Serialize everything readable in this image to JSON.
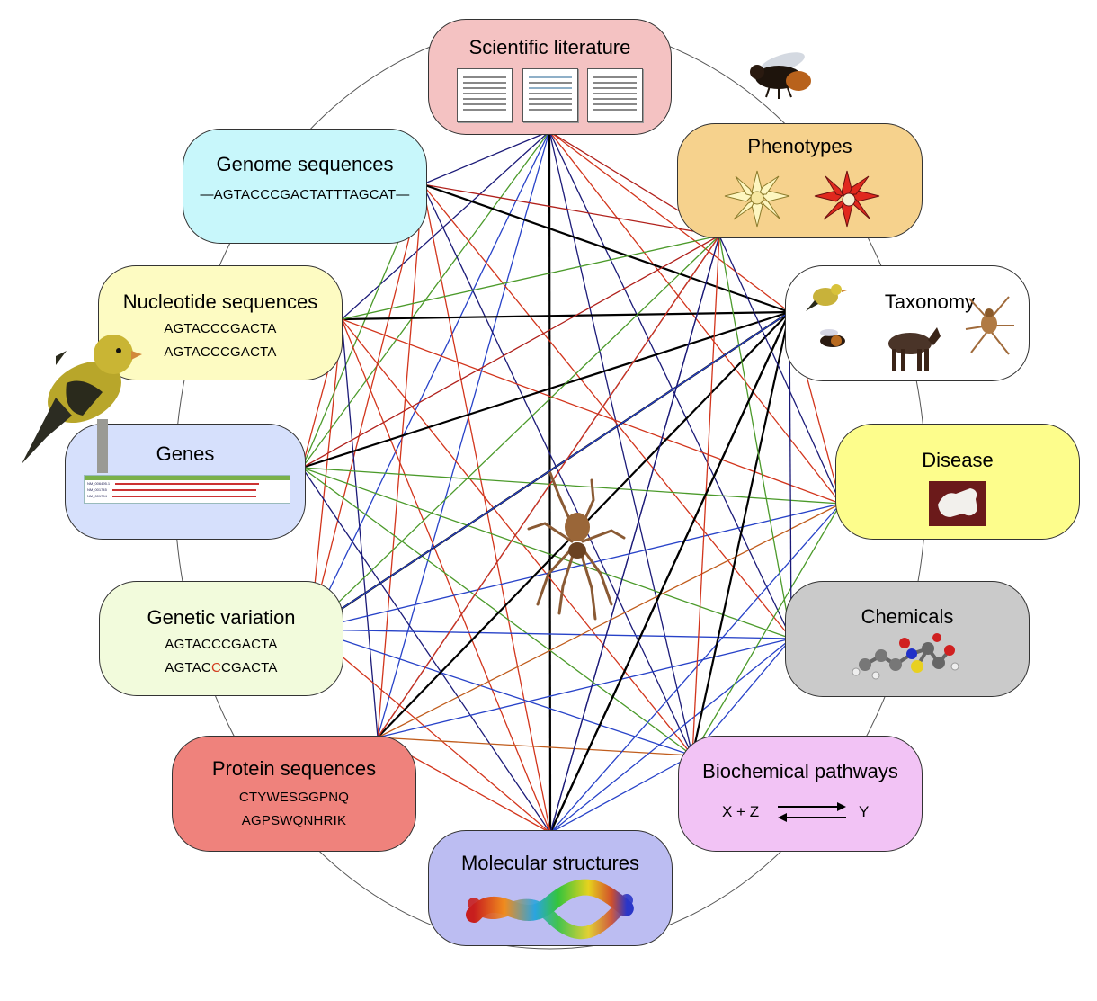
{
  "nodes": {
    "literature": {
      "title": "Scientific literature"
    },
    "genome": {
      "title": "Genome sequences",
      "seq": "—AGTACCCGACTATTTAGCAT—"
    },
    "nucleotide": {
      "title": "Nucleotide sequences",
      "seq1": "AGTACCCGACTA",
      "seq2": "AGTACCCGACTA"
    },
    "genes": {
      "title": "Genes",
      "track_labels": [
        "NM_006495.1",
        "NM_001745",
        "NM_001794"
      ]
    },
    "variation": {
      "title": "Genetic variation",
      "seq1": "AGTACCCGACTA",
      "seq2_pre": "AGTAC",
      "seq2_mut": "C",
      "seq2_post": "CGACTA"
    },
    "protein": {
      "title": "Protein sequences",
      "seq1": "CTYWESGGPNQ",
      "seq2": "AGPSWQNHRIK"
    },
    "structures": {
      "title": "Molecular structures"
    },
    "pathways": {
      "title": "Biochemical pathways",
      "left": "X + Z",
      "right": "Y"
    },
    "chemicals": {
      "title": "Chemicals"
    },
    "disease": {
      "title": "Disease"
    },
    "taxonomy": {
      "title": "Taxonomy"
    },
    "phenotypes": {
      "title": "Phenotypes"
    }
  },
  "colors": {
    "literature": "#f4c2c2",
    "genome": "#c8f7fb",
    "nucleotide": "#fdfbc2",
    "genes": "#d6e0fc",
    "variation": "#f2fbdc",
    "protein": "#ef827c",
    "structures": "#bcbdf2",
    "pathways": "#f2c3f5",
    "chemicals": "#cacaca",
    "disease": "#fdfd8c",
    "taxonomy": "#ffffff",
    "phenotypes": "#f6d28d",
    "link_navy": "#1b1a78",
    "link_blue": "#2742c8",
    "link_red": "#d2351c",
    "link_darkred": "#b0201b",
    "link_green": "#4b9a2a",
    "link_orange": "#c05c1c",
    "link_black": "#000000"
  },
  "icons": [
    "bee-icon",
    "bird-icon",
    "spider-icon",
    "horse-icon",
    "flower-icon",
    "bone-icon",
    "molecule-icon",
    "dna-helix-icon",
    "document-icon"
  ]
}
